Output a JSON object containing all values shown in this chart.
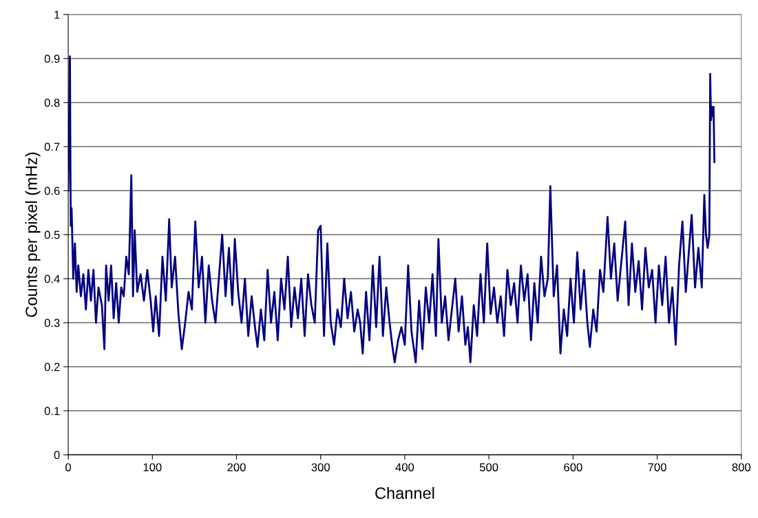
{
  "chart_data": {
    "type": "line",
    "xlabel": "Channel",
    "ylabel": "Counts per pixel (mHz)",
    "xlim": [
      0,
      800
    ],
    "xticks": [
      0,
      100,
      200,
      300,
      400,
      500,
      600,
      700,
      800
    ],
    "ylim": [
      0,
      1
    ],
    "yticks": [
      0,
      0.1,
      0.2,
      0.3,
      0.4,
      0.5,
      0.6,
      0.7,
      0.8,
      0.9,
      1
    ],
    "grid": "y",
    "marker": "none",
    "line_style": "solid",
    "series": [
      {
        "color": "#000080",
        "x": [
          0,
          2,
          3,
          4,
          6,
          8,
          10,
          12,
          15,
          18,
          21,
          24,
          27,
          30,
          33,
          36,
          40,
          43,
          45,
          48,
          51,
          54,
          57,
          60,
          63,
          66,
          69,
          72,
          75,
          77,
          79,
          82,
          86,
          90,
          94,
          98,
          101,
          104,
          108,
          112,
          116,
          120,
          123,
          127,
          131,
          135,
          139,
          143,
          147,
          151,
          155,
          159,
          163,
          167,
          171,
          175,
          179,
          183,
          187,
          191,
          195,
          198,
          202,
          206,
          210,
          214,
          218,
          222,
          225,
          229,
          233,
          237,
          241,
          245,
          249,
          253,
          257,
          261,
          265,
          269,
          273,
          277,
          281,
          285,
          289,
          293,
          297,
          300,
          304,
          308,
          312,
          316,
          320,
          324,
          328,
          332,
          336,
          340,
          344,
          347,
          350,
          354,
          358,
          362,
          366,
          370,
          374,
          378,
          382,
          385,
          388,
          392,
          396,
          400,
          404,
          408,
          413,
          417,
          421,
          425,
          429,
          433,
          437,
          440,
          444,
          448,
          452,
          456,
          460,
          464,
          468,
          472,
          475,
          478,
          482,
          486,
          490,
          494,
          498,
          502,
          506,
          510,
          514,
          518,
          522,
          526,
          530,
          534,
          538,
          542,
          546,
          550,
          554,
          558,
          562,
          566,
          570,
          573,
          577,
          581,
          585,
          589,
          593,
          597,
          601,
          605,
          609,
          613,
          617,
          620,
          624,
          628,
          632,
          636,
          641,
          645,
          649,
          653,
          657,
          662,
          666,
          670,
          674,
          678,
          682,
          686,
          690,
          694,
          698,
          702,
          706,
          710,
          714,
          718,
          722,
          726,
          730,
          734,
          738,
          741,
          745,
          749,
          753,
          756,
          758,
          760,
          762,
          763,
          764,
          765,
          766,
          767,
          768
        ],
        "values": [
          0.6,
          0.905,
          0.52,
          0.56,
          0.4,
          0.48,
          0.37,
          0.43,
          0.36,
          0.41,
          0.33,
          0.42,
          0.35,
          0.42,
          0.3,
          0.38,
          0.34,
          0.24,
          0.43,
          0.35,
          0.43,
          0.31,
          0.39,
          0.3,
          0.38,
          0.36,
          0.45,
          0.41,
          0.635,
          0.36,
          0.51,
          0.37,
          0.41,
          0.35,
          0.42,
          0.35,
          0.28,
          0.36,
          0.27,
          0.45,
          0.35,
          0.535,
          0.38,
          0.45,
          0.32,
          0.24,
          0.3,
          0.37,
          0.33,
          0.53,
          0.38,
          0.45,
          0.3,
          0.43,
          0.35,
          0.3,
          0.4,
          0.5,
          0.36,
          0.47,
          0.34,
          0.49,
          0.37,
          0.3,
          0.4,
          0.27,
          0.36,
          0.29,
          0.245,
          0.33,
          0.26,
          0.42,
          0.3,
          0.37,
          0.26,
          0.4,
          0.33,
          0.45,
          0.29,
          0.38,
          0.31,
          0.4,
          0.27,
          0.41,
          0.34,
          0.3,
          0.51,
          0.52,
          0.27,
          0.48,
          0.3,
          0.25,
          0.33,
          0.29,
          0.4,
          0.31,
          0.37,
          0.28,
          0.33,
          0.3,
          0.23,
          0.37,
          0.26,
          0.43,
          0.29,
          0.45,
          0.27,
          0.38,
          0.3,
          0.25,
          0.21,
          0.26,
          0.29,
          0.25,
          0.43,
          0.28,
          0.21,
          0.35,
          0.24,
          0.38,
          0.3,
          0.41,
          0.27,
          0.49,
          0.3,
          0.36,
          0.26,
          0.33,
          0.4,
          0.28,
          0.36,
          0.25,
          0.29,
          0.21,
          0.34,
          0.27,
          0.41,
          0.3,
          0.48,
          0.32,
          0.38,
          0.3,
          0.36,
          0.27,
          0.42,
          0.34,
          0.39,
          0.3,
          0.43,
          0.35,
          0.41,
          0.26,
          0.39,
          0.3,
          0.45,
          0.36,
          0.4,
          0.61,
          0.36,
          0.43,
          0.23,
          0.33,
          0.27,
          0.4,
          0.3,
          0.46,
          0.33,
          0.42,
          0.3,
          0.245,
          0.33,
          0.28,
          0.42,
          0.37,
          0.54,
          0.4,
          0.48,
          0.35,
          0.43,
          0.53,
          0.34,
          0.48,
          0.37,
          0.44,
          0.33,
          0.47,
          0.38,
          0.42,
          0.3,
          0.43,
          0.34,
          0.45,
          0.3,
          0.38,
          0.25,
          0.43,
          0.53,
          0.37,
          0.47,
          0.545,
          0.38,
          0.47,
          0.38,
          0.59,
          0.5,
          0.47,
          0.5,
          0.865,
          0.76,
          0.79,
          0.77,
          0.79,
          0.665
        ]
      }
    ]
  }
}
